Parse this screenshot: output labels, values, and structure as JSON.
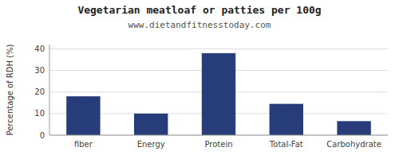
{
  "chart_data": {
    "type": "bar",
    "title": "Vegetarian meatloaf or patties per 100g",
    "subtitle": "www.dietandfitnesstoday.com",
    "categories": [
      "fiber",
      "Energy",
      "Protein",
      "Total-Fat",
      "Carbohydrate"
    ],
    "values": [
      18,
      10,
      38,
      14.5,
      6.5
    ],
    "color": "#263d7a",
    "ylabel": "Percentage of RDH (%)",
    "ylim": [
      0,
      42
    ],
    "yticks": [
      0,
      10,
      20,
      30,
      40
    ],
    "grid": true
  }
}
